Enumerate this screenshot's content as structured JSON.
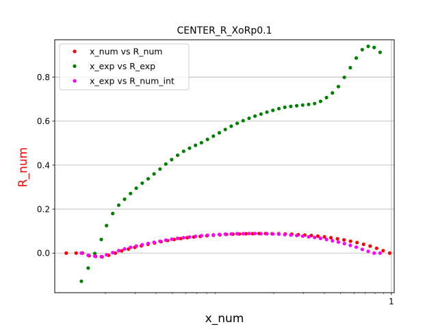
{
  "chart_data": {
    "type": "scatter",
    "title": "CENTER_R_XoRp0.1",
    "xlabel": "x_num",
    "ylabel": "R_num",
    "xlim": [
      0.01,
      1.04
    ],
    "ylim": [
      -0.18,
      0.97
    ],
    "x_scale": "log",
    "grid": true,
    "legend_position": "upper-left",
    "x_ticks": [
      {
        "value": 1,
        "label": "1"
      }
    ],
    "y_ticks": [
      {
        "value": 0.0,
        "label": "0.0"
      },
      {
        "value": 0.2,
        "label": "0.2"
      },
      {
        "value": 0.4,
        "label": "0.4"
      },
      {
        "value": 0.6,
        "label": "0.6"
      },
      {
        "value": 0.8,
        "label": "0.8"
      }
    ],
    "series": [
      {
        "name": "x_num vs R_num",
        "color": "#ff0000",
        "points": [
          [
            0.0117,
            0.0
          ],
          [
            0.0134,
            0.0
          ],
          [
            0.0146,
            0.0
          ],
          [
            0.016,
            -0.012
          ],
          [
            0.0175,
            -0.015
          ],
          [
            0.0191,
            -0.017
          ],
          [
            0.0209,
            -0.01
          ],
          [
            0.0229,
            0.0
          ],
          [
            0.025,
            0.01
          ],
          [
            0.0274,
            0.018
          ],
          [
            0.0299,
            0.026
          ],
          [
            0.0327,
            0.033
          ],
          [
            0.0358,
            0.04
          ],
          [
            0.0392,
            0.046
          ],
          [
            0.0428,
            0.052
          ],
          [
            0.0468,
            0.057
          ],
          [
            0.0512,
            0.062
          ],
          [
            0.056,
            0.066
          ],
          [
            0.0612,
            0.07
          ],
          [
            0.067,
            0.073
          ],
          [
            0.0732,
            0.076
          ],
          [
            0.0801,
            0.079
          ],
          [
            0.0876,
            0.081
          ],
          [
            0.0958,
            0.083
          ],
          [
            0.1047,
            0.085
          ],
          [
            0.1145,
            0.086
          ],
          [
            0.1252,
            0.087
          ],
          [
            0.1369,
            0.088
          ],
          [
            0.1497,
            0.088
          ],
          [
            0.1637,
            0.089
          ],
          [
            0.179,
            0.089
          ],
          [
            0.1957,
            0.088
          ],
          [
            0.214,
            0.088
          ],
          [
            0.234,
            0.087
          ],
          [
            0.2559,
            0.086
          ],
          [
            0.2798,
            0.084
          ],
          [
            0.306,
            0.082
          ],
          [
            0.3346,
            0.08
          ],
          [
            0.3659,
            0.077
          ],
          [
            0.4001,
            0.074
          ],
          [
            0.4375,
            0.07
          ],
          [
            0.4784,
            0.065
          ],
          [
            0.5231,
            0.06
          ],
          [
            0.572,
            0.054
          ],
          [
            0.6255,
            0.048
          ],
          [
            0.684,
            0.04
          ],
          [
            0.7479,
            0.032
          ],
          [
            0.8178,
            0.022
          ],
          [
            0.8943,
            0.011
          ],
          [
            0.9779,
            0.0
          ]
        ]
      },
      {
        "name": "x_exp vs R_exp",
        "color": "#008000",
        "points": [
          [
            0.0144,
            -0.128
          ],
          [
            0.0158,
            -0.068
          ],
          [
            0.0173,
            -0.002
          ],
          [
            0.0189,
            0.062
          ],
          [
            0.0203,
            0.125
          ],
          [
            0.0221,
            0.18
          ],
          [
            0.024,
            0.218
          ],
          [
            0.026,
            0.245
          ],
          [
            0.0282,
            0.271
          ],
          [
            0.0305,
            0.295
          ],
          [
            0.0331,
            0.318
          ],
          [
            0.0359,
            0.338
          ],
          [
            0.0389,
            0.36
          ],
          [
            0.0422,
            0.382
          ],
          [
            0.0457,
            0.405
          ],
          [
            0.0495,
            0.425
          ],
          [
            0.0537,
            0.445
          ],
          [
            0.0583,
            0.463
          ],
          [
            0.0632,
            0.477
          ],
          [
            0.0686,
            0.49
          ],
          [
            0.0744,
            0.502
          ],
          [
            0.0808,
            0.517
          ],
          [
            0.0876,
            0.532
          ],
          [
            0.095,
            0.547
          ],
          [
            0.1031,
            0.562
          ],
          [
            0.1118,
            0.577
          ],
          [
            0.1213,
            0.59
          ],
          [
            0.1316,
            0.602
          ],
          [
            0.1428,
            0.613
          ],
          [
            0.1549,
            0.623
          ],
          [
            0.168,
            0.632
          ],
          [
            0.1823,
            0.641
          ],
          [
            0.1978,
            0.649
          ],
          [
            0.2146,
            0.657
          ],
          [
            0.2328,
            0.663
          ],
          [
            0.2526,
            0.667
          ],
          [
            0.274,
            0.67
          ],
          [
            0.2973,
            0.673
          ],
          [
            0.3225,
            0.676
          ],
          [
            0.3499,
            0.68
          ],
          [
            0.3796,
            0.69
          ],
          [
            0.4118,
            0.707
          ],
          [
            0.4468,
            0.728
          ],
          [
            0.4847,
            0.757
          ],
          [
            0.5259,
            0.799
          ],
          [
            0.5705,
            0.843
          ],
          [
            0.619,
            0.887
          ],
          [
            0.6715,
            0.925
          ],
          [
            0.7286,
            0.94
          ],
          [
            0.7904,
            0.935
          ],
          [
            0.8575,
            0.913
          ]
        ]
      },
      {
        "name": "x_exp vs R_num_int",
        "color": "#ff00ff",
        "points": [
          [
            0.0144,
            0.0
          ],
          [
            0.0158,
            -0.01
          ],
          [
            0.0173,
            -0.014
          ],
          [
            0.0189,
            -0.016
          ],
          [
            0.0203,
            -0.008
          ],
          [
            0.0221,
            0.002
          ],
          [
            0.024,
            0.011
          ],
          [
            0.026,
            0.019
          ],
          [
            0.0282,
            0.026
          ],
          [
            0.0305,
            0.032
          ],
          [
            0.0331,
            0.038
          ],
          [
            0.0359,
            0.044
          ],
          [
            0.0389,
            0.049
          ],
          [
            0.0422,
            0.054
          ],
          [
            0.0457,
            0.059
          ],
          [
            0.0495,
            0.063
          ],
          [
            0.0537,
            0.067
          ],
          [
            0.0583,
            0.07
          ],
          [
            0.0632,
            0.073
          ],
          [
            0.0686,
            0.076
          ],
          [
            0.0744,
            0.079
          ],
          [
            0.0808,
            0.081
          ],
          [
            0.0876,
            0.083
          ],
          [
            0.095,
            0.085
          ],
          [
            0.1031,
            0.086
          ],
          [
            0.1118,
            0.087
          ],
          [
            0.1213,
            0.088
          ],
          [
            0.1316,
            0.088
          ],
          [
            0.1428,
            0.089
          ],
          [
            0.1549,
            0.089
          ],
          [
            0.168,
            0.088
          ],
          [
            0.1823,
            0.088
          ],
          [
            0.1978,
            0.087
          ],
          [
            0.2146,
            0.086
          ],
          [
            0.2328,
            0.084
          ],
          [
            0.2526,
            0.082
          ],
          [
            0.274,
            0.08
          ],
          [
            0.2973,
            0.077
          ],
          [
            0.3225,
            0.074
          ],
          [
            0.3499,
            0.071
          ],
          [
            0.3796,
            0.067
          ],
          [
            0.4118,
            0.062
          ],
          [
            0.4468,
            0.056
          ],
          [
            0.4847,
            0.05
          ],
          [
            0.5259,
            0.043
          ],
          [
            0.5705,
            0.035
          ],
          [
            0.619,
            0.027
          ],
          [
            0.6715,
            0.017
          ],
          [
            0.7286,
            0.008
          ],
          [
            0.7904,
            0.0
          ],
          [
            0.8575,
            0.0
          ]
        ]
      }
    ]
  }
}
